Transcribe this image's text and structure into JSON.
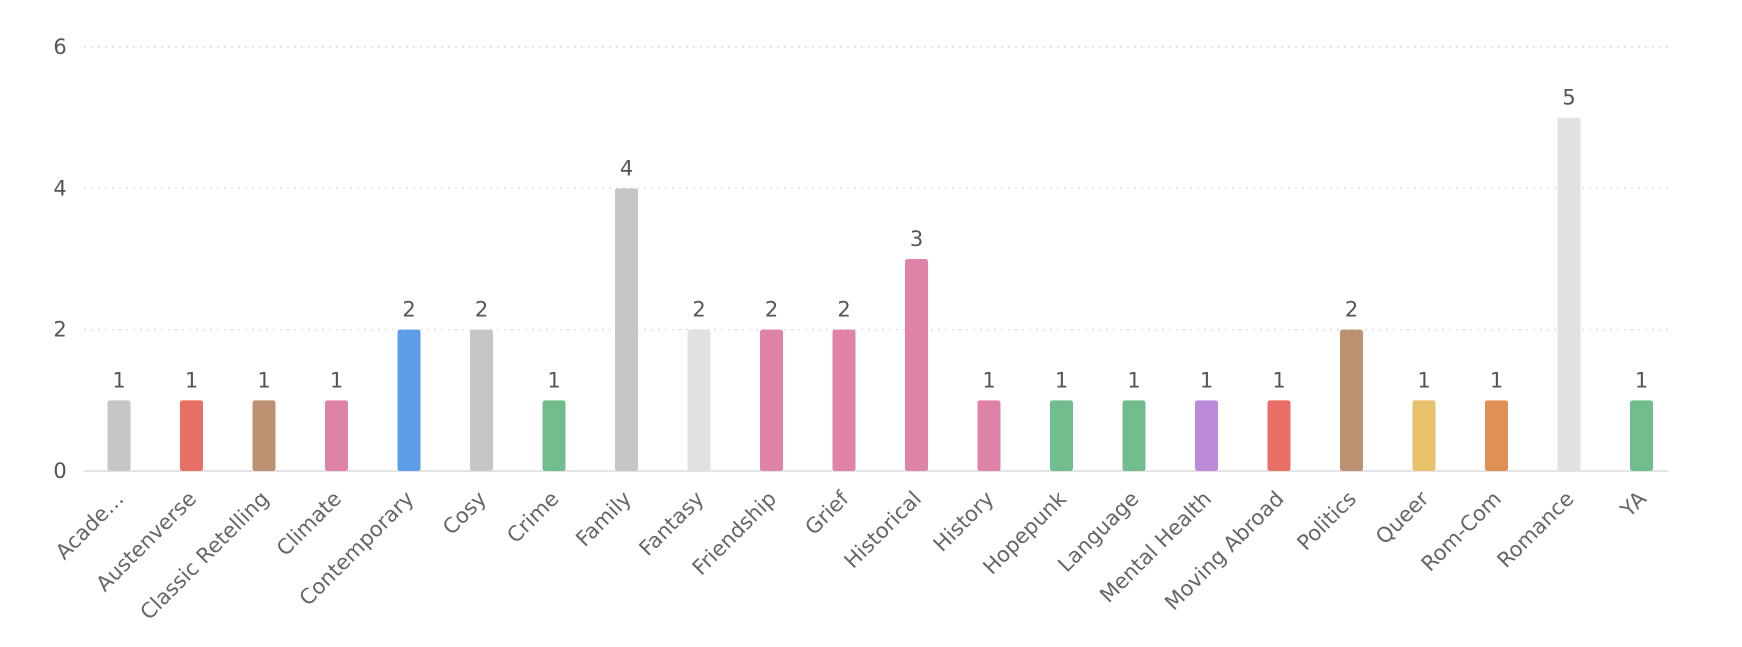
{
  "chart_data": {
    "type": "bar",
    "title": "",
    "xlabel": "",
    "ylabel": "",
    "ylim": [
      0,
      6
    ],
    "yticks": [
      0,
      2,
      4,
      6
    ],
    "grid": true,
    "categories": [
      "Acade…",
      "Austenverse",
      "Classic Retelling",
      "Climate",
      "Contemporary",
      "Cosy",
      "Crime",
      "Family",
      "Fantasy",
      "Friendship",
      "Grief",
      "Historical",
      "History",
      "Hopepunk",
      "Language",
      "Mental Health",
      "Moving Abroad",
      "Politics",
      "Queer",
      "Rom-Com",
      "Romance",
      "YA"
    ],
    "values": [
      1,
      1,
      1,
      1,
      2,
      2,
      1,
      4,
      2,
      2,
      2,
      3,
      1,
      1,
      1,
      1,
      1,
      2,
      1,
      1,
      5,
      1
    ],
    "colors": [
      "#c6c6c4",
      "#e86f66",
      "#bd9272",
      "#df82a8",
      "#5c9fe8",
      "#c6c6c4",
      "#72bd8e",
      "#c6c6c4",
      "#e2e1df",
      "#df82a8",
      "#df82a8",
      "#df82a8",
      "#df82a8",
      "#72bd8e",
      "#72bd8e",
      "#bb8ad9",
      "#e86f66",
      "#bd9272",
      "#e8c16c",
      "#e09055",
      "#e2e1df",
      "#72bd8e"
    ]
  }
}
